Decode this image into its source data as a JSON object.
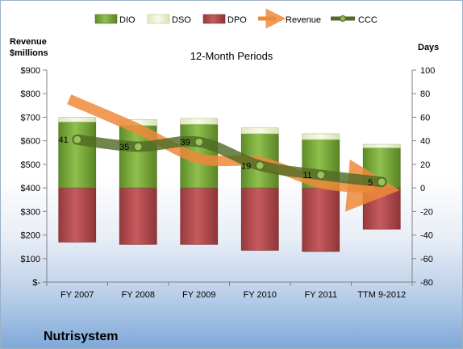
{
  "chart_data": {
    "type": "bar",
    "title": "12-Month Periods",
    "company": "Nutrisystem",
    "ylabel_left": "Revenue $millions",
    "ylabel_right": "Days",
    "categories": [
      "FY 2007",
      "FY 2008",
      "FY 2009",
      "FY 2010",
      "FY 2011",
      "TTM 9-2012"
    ],
    "left_axis": {
      "min": 0,
      "max": 900,
      "step": 100,
      "tick_labels": [
        "$-",
        "$100",
        "$200",
        "$300",
        "$400",
        "$500",
        "$600",
        "$700",
        "$800",
        "$900"
      ]
    },
    "right_axis": {
      "min": -80,
      "max": 100,
      "step": 20,
      "tick_labels": [
        "-80",
        "-60",
        "-40",
        "-20",
        "0",
        "20",
        "40",
        "60",
        "80",
        "100"
      ]
    },
    "series": [
      {
        "name": "DIO",
        "kind": "stacked-bar",
        "axis": "right",
        "values": [
          56,
          53,
          54,
          46,
          41,
          34
        ],
        "color": "#77a83a"
      },
      {
        "name": "DSO",
        "kind": "stacked-bar",
        "axis": "right",
        "values": [
          4,
          5,
          5,
          5,
          5,
          3
        ],
        "color": "#eef5d6"
      },
      {
        "name": "DPO",
        "kind": "stacked-bar-negative",
        "axis": "right",
        "values": [
          -46,
          -48,
          -48,
          -53,
          -54,
          -35
        ],
        "color": "#b04a4d"
      },
      {
        "name": "Revenue",
        "kind": "line-arrow",
        "axis": "left",
        "values": [
          776,
          650,
          525,
          510,
          420,
          400
        ],
        "color": "#ed8a3a"
      },
      {
        "name": "CCC",
        "kind": "line",
        "axis": "right",
        "values": [
          41,
          35,
          39,
          19,
          11,
          5
        ],
        "color": "#4f6b25"
      }
    ],
    "data_labels": [
      "41",
      "35",
      "39",
      "19",
      "11",
      "5"
    ],
    "legend": {
      "position": "top",
      "items": [
        "DIO",
        "DSO",
        "DPO",
        "Revenue",
        "CCC"
      ]
    },
    "grid": false
  }
}
